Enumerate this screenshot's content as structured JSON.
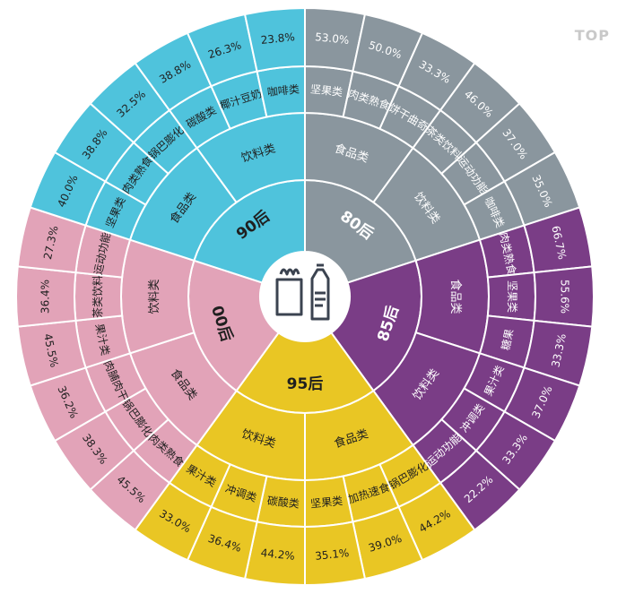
{
  "watermark": "TOP",
  "chart_data": {
    "type": "sunburst",
    "title": "",
    "groups": [
      {
        "name": "80后",
        "color": "#8a969e",
        "categories": [
          {
            "name": "食品类",
            "items": [
              {
                "name": "坚果类",
                "value": "53.0%"
              },
              {
                "name": "肉类熟食",
                "value": "50.0%"
              },
              {
                "name": "饼干曲奇",
                "value": "33.3%"
              }
            ]
          },
          {
            "name": "饮料类",
            "items": [
              {
                "name": "茶类饮料",
                "value": "46.0%"
              },
              {
                "name": "运动功能",
                "value": "37.0%"
              },
              {
                "name": "咖啡类",
                "value": "35.0%"
              }
            ]
          }
        ]
      },
      {
        "name": "85后",
        "color": "#7a3d86",
        "categories": [
          {
            "name": "食品类",
            "items": [
              {
                "name": "肉类熟食",
                "value": "66.7%"
              },
              {
                "name": "坚果类",
                "value": "55.6%"
              },
              {
                "name": "糖果",
                "value": "33.3%"
              }
            ]
          },
          {
            "name": "饮料类",
            "items": [
              {
                "name": "果汁类",
                "value": "37.0%"
              },
              {
                "name": "冲调类",
                "value": "33.3%"
              },
              {
                "name": "运动功能",
                "value": "22.2%"
              }
            ]
          }
        ]
      },
      {
        "name": "95后",
        "color": "#e9c624",
        "categories": [
          {
            "name": "食品类",
            "items": [
              {
                "name": "锅巴膨化",
                "value": "44.2%"
              },
              {
                "name": "加热速食",
                "value": "39.0%"
              },
              {
                "name": "坚果类",
                "value": "35.1%"
              }
            ]
          },
          {
            "name": "饮料类",
            "items": [
              {
                "name": "碳酸类",
                "value": "44.2%"
              },
              {
                "name": "冲调类",
                "value": "36.4%"
              },
              {
                "name": "果汁类",
                "value": "33.0%"
              }
            ]
          }
        ]
      },
      {
        "name": "00后",
        "color": "#e2a3b8",
        "categories": [
          {
            "name": "食品类",
            "items": [
              {
                "name": "肉类熟食",
                "value": "45.5%"
              },
              {
                "name": "锅巴膨化",
                "value": "38.3%"
              },
              {
                "name": "肉脯肉干",
                "value": "36.2%"
              }
            ]
          },
          {
            "name": "饮料类",
            "items": [
              {
                "name": "果汁类",
                "value": "45.5%"
              },
              {
                "name": "茶类饮料",
                "value": "36.4%"
              },
              {
                "name": "运动功能",
                "value": "27.3%"
              }
            ]
          }
        ]
      },
      {
        "name": "90后",
        "color": "#4fc3dc",
        "categories": [
          {
            "name": "食品类",
            "items": [
              {
                "name": "坚果类",
                "value": "40.0%"
              },
              {
                "name": "肉类熟食",
                "value": "38.8%"
              },
              {
                "name": "锅巴膨化",
                "value": "32.5%"
              }
            ]
          },
          {
            "name": "饮料类",
            "items": [
              {
                "name": "碳酸类",
                "value": "38.8%"
              },
              {
                "name": "椰汁豆奶",
                "value": "26.3%"
              },
              {
                "name": "咖啡类",
                "value": "23.8%"
              }
            ]
          }
        ]
      }
    ]
  }
}
